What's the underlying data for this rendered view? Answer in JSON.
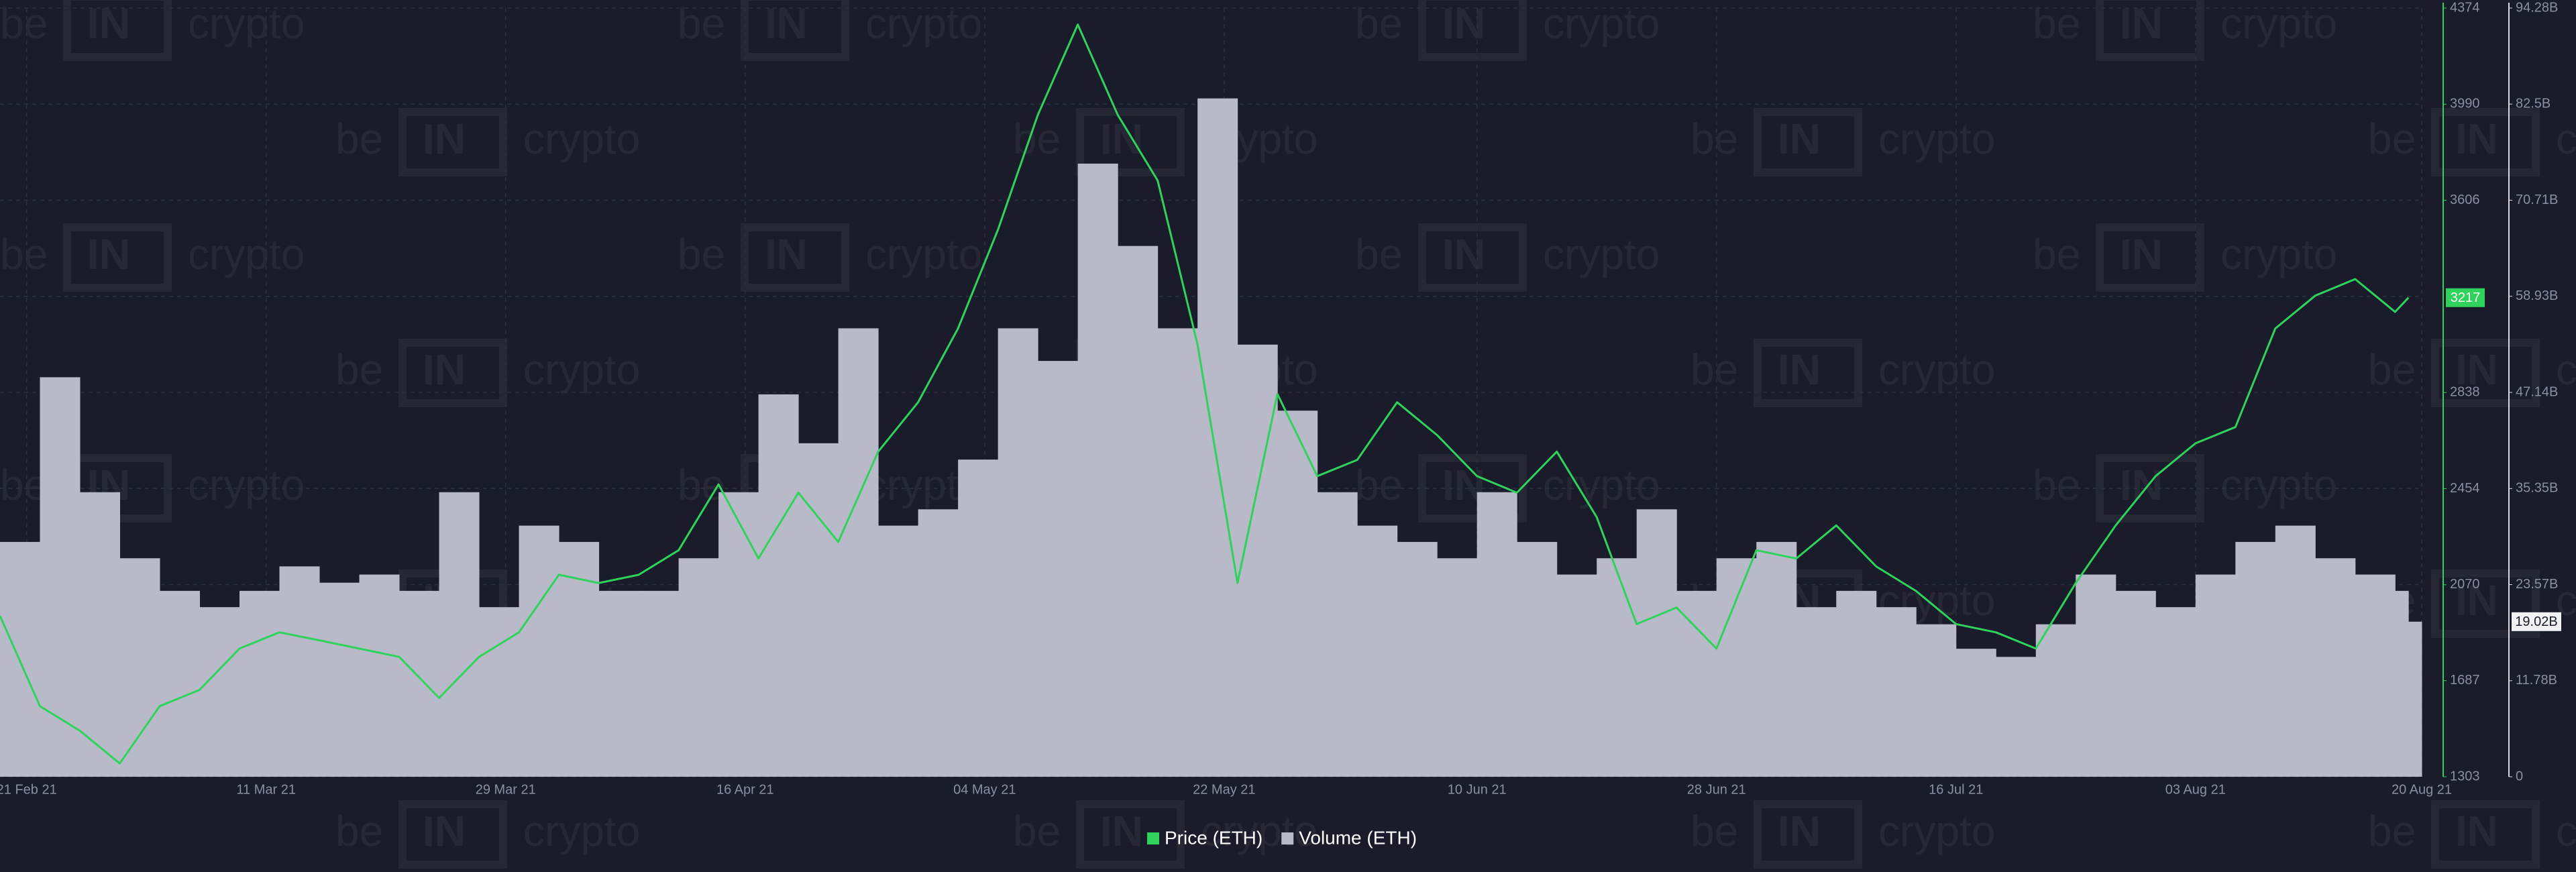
{
  "chart_data": {
    "type": "bar-line",
    "watermark": [
      "be",
      "IN",
      "crypto"
    ],
    "x": [
      "2021-02-19",
      "2021-02-22",
      "2021-02-25",
      "2021-02-28",
      "2021-03-03",
      "2021-03-06",
      "2021-03-09",
      "2021-03-12",
      "2021-03-15",
      "2021-03-18",
      "2021-03-21",
      "2021-03-24",
      "2021-03-27",
      "2021-03-30",
      "2021-04-02",
      "2021-04-05",
      "2021-04-08",
      "2021-04-11",
      "2021-04-14",
      "2021-04-17",
      "2021-04-20",
      "2021-04-23",
      "2021-04-26",
      "2021-04-29",
      "2021-05-02",
      "2021-05-05",
      "2021-05-08",
      "2021-05-11",
      "2021-05-14",
      "2021-05-17",
      "2021-05-20",
      "2021-05-23",
      "2021-05-26",
      "2021-05-29",
      "2021-06-01",
      "2021-06-04",
      "2021-06-07",
      "2021-06-10",
      "2021-06-13",
      "2021-06-16",
      "2021-06-19",
      "2021-06-22",
      "2021-06-25",
      "2021-06-28",
      "2021-07-01",
      "2021-07-04",
      "2021-07-07",
      "2021-07-10",
      "2021-07-13",
      "2021-07-16",
      "2021-07-19",
      "2021-07-22",
      "2021-07-25",
      "2021-07-28",
      "2021-07-31",
      "2021-08-03",
      "2021-08-06",
      "2021-08-09",
      "2021-08-12",
      "2021-08-15",
      "2021-08-18",
      "2021-08-19"
    ],
    "xlim": [
      "2021-02-19",
      "2021-08-20"
    ],
    "xticks": [
      {
        "value": "2021-02-21",
        "label": "21 Feb 21"
      },
      {
        "value": "2021-03-11",
        "label": "11 Mar 21"
      },
      {
        "value": "2021-03-29",
        "label": "29 Mar 21"
      },
      {
        "value": "2021-04-16",
        "label": "16 Apr 21"
      },
      {
        "value": "2021-05-04",
        "label": "04 May 21"
      },
      {
        "value": "2021-05-22",
        "label": "22 May 21"
      },
      {
        "value": "2021-06-10",
        "label": "10 Jun 21"
      },
      {
        "value": "2021-06-28",
        "label": "28 Jun 21"
      },
      {
        "value": "2021-07-16",
        "label": "16 Jul 21"
      },
      {
        "value": "2021-08-03",
        "label": "03 Aug 21"
      },
      {
        "value": "2021-08-20",
        "label": "20 Aug 21"
      }
    ],
    "ylim": [
      1303,
      4374
    ],
    "yticks": [
      1303,
      1687,
      2070,
      2454,
      2838,
      3606,
      3990,
      4374
    ],
    "y2lim": [
      0,
      94.28
    ],
    "y2ticks": [
      0,
      {
        "value": 11.78,
        "label": "11.78B"
      },
      {
        "value": 23.57,
        "label": "23.57B"
      },
      {
        "value": 35.35,
        "label": "35.35B"
      },
      {
        "value": 47.14,
        "label": "47.14B"
      },
      {
        "value": 58.93,
        "label": "58.93B"
      },
      {
        "value": 70.71,
        "label": "70.71B"
      },
      {
        "value": 82.5,
        "label": "82.5B"
      },
      {
        "value": 94.28,
        "label": "94.28B"
      }
    ],
    "grid": true,
    "series": [
      {
        "name": "Price (ETH)",
        "type": "line",
        "color": "#2fd35b",
        "values": [
          1946,
          1585,
          1487,
          1356,
          1585,
          1650,
          1815,
          1880,
          1848,
          1815,
          1782,
          1618,
          1782,
          1880,
          2110,
          2077,
          2110,
          2208,
          2471,
          2175,
          2438,
          2241,
          2602,
          2799,
          3094,
          3488,
          3947,
          4308,
          3947,
          3685,
          3029,
          2077,
          2832,
          2504,
          2569,
          2799,
          2668,
          2504,
          2438,
          2602,
          2340,
          1913,
          1979,
          1815,
          2208,
          2175,
          2307,
          2143,
          2045,
          1913,
          1880,
          1815,
          2077,
          2307,
          2504,
          2635,
          2700,
          3094,
          3225,
          3291,
          3160,
          3217
        ]
      },
      {
        "name": "Volume (ETH)",
        "type": "bar",
        "axis": "y2",
        "color": "#b9bac9",
        "end_label": "19.02B",
        "values": [
          28.8,
          49.0,
          34.9,
          26.8,
          22.8,
          20.8,
          22.8,
          25.8,
          23.8,
          24.8,
          22.8,
          34.9,
          20.8,
          30.8,
          28.8,
          22.8,
          22.8,
          26.8,
          34.9,
          46.9,
          40.9,
          55.0,
          30.8,
          32.8,
          38.9,
          55.0,
          51.0,
          75.2,
          65.1,
          55.0,
          83.2,
          53.0,
          44.9,
          34.9,
          30.8,
          28.8,
          26.8,
          34.9,
          28.8,
          24.8,
          26.8,
          32.8,
          22.8,
          26.8,
          28.8,
          20.8,
          22.8,
          20.8,
          18.7,
          15.7,
          14.7,
          18.7,
          24.8,
          22.8,
          20.8,
          24.8,
          28.8,
          30.8,
          26.8,
          24.8,
          22.8,
          19.02
        ]
      }
    ]
  }
}
